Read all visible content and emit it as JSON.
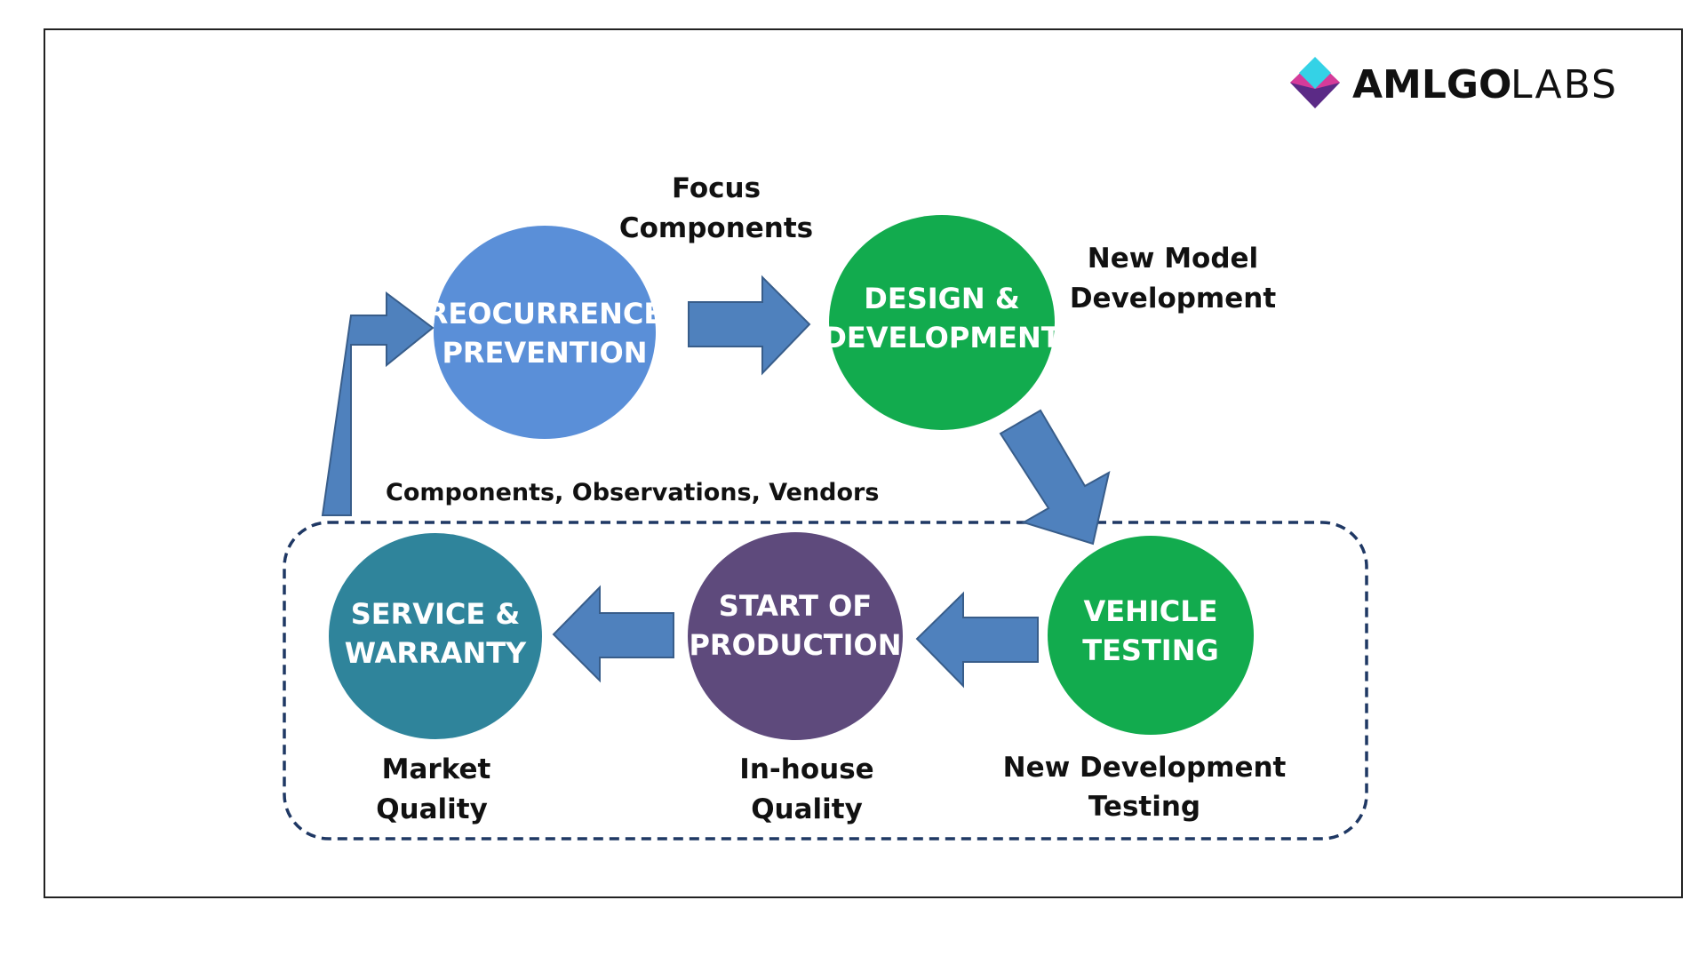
{
  "logo": {
    "brand": "AMLGO",
    "suffix": "LABS",
    "icon": "diamond-logo-icon"
  },
  "nodes": {
    "recurrence": {
      "line1": "REOCURRENCE",
      "line2": "PREVENTION",
      "color": "#5A8FD8"
    },
    "design": {
      "line1": "DESIGN &",
      "line2": "DEVELOPMENT",
      "color": "#12AB4E"
    },
    "testing": {
      "line1": "VEHICLE",
      "line2": "TESTING",
      "color": "#12AB4E"
    },
    "production": {
      "line1": "START OF",
      "line2": "PRODUCTION",
      "color": "#5E4A7C"
    },
    "service": {
      "line1": "SERVICE &",
      "line2": "WARRANTY",
      "color": "#2F849B"
    }
  },
  "labels": {
    "focus": {
      "line1": "Focus",
      "line2": "Components"
    },
    "new_model": {
      "line1": "New Model",
      "line2": "Development"
    },
    "feedback": "Components, Observations, Vendors",
    "market": {
      "line1": "Market",
      "line2": "Quality"
    },
    "inhouse": {
      "line1": "In-house",
      "line2": "Quality"
    },
    "new_dev_testing": {
      "line1": "New Development",
      "line2": "Testing"
    }
  },
  "colors": {
    "arrow_fill": "#4F81BD",
    "arrow_stroke": "#385D8A",
    "dashed_border": "#1F3864",
    "frame": "#222222"
  }
}
